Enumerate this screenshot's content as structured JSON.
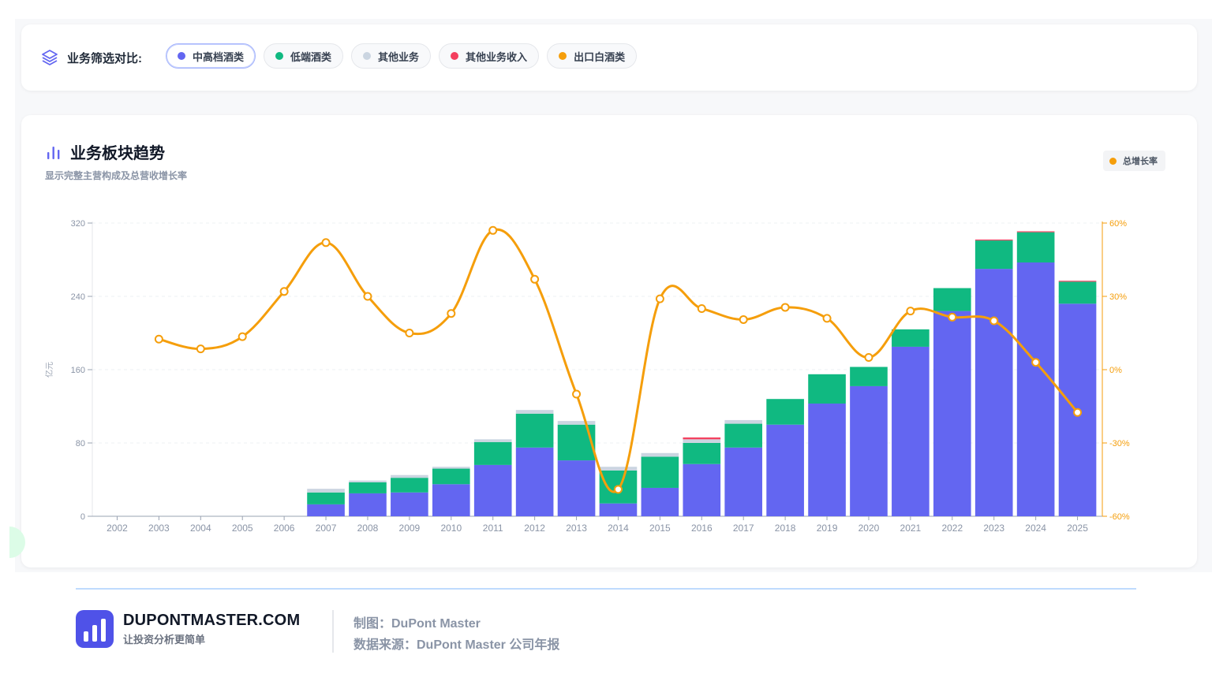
{
  "filter": {
    "label": "业务筛选对比:",
    "chips": [
      {
        "label": "中高档酒类",
        "color": "#6366f1",
        "active": true
      },
      {
        "label": "低端酒类",
        "color": "#10b981",
        "active": false
      },
      {
        "label": "其他业务",
        "color": "#cbd5e1",
        "active": false
      },
      {
        "label": "其他业务收入",
        "color": "#f43f5e",
        "active": false
      },
      {
        "label": "出口白酒类",
        "color": "#f59e0b",
        "active": false
      }
    ]
  },
  "chart_header": {
    "title": "业务板块趋势",
    "subtitle": "显示完整主营构成及总营收增长率",
    "legend_label": "总增长率"
  },
  "chart_data": {
    "type": "bar",
    "stacked": true,
    "categories": [
      "2002",
      "2003",
      "2004",
      "2005",
      "2006",
      "2007",
      "2008",
      "2009",
      "2010",
      "2011",
      "2012",
      "2013",
      "2014",
      "2015",
      "2016",
      "2017",
      "2018",
      "2019",
      "2020",
      "2021",
      "2022",
      "2023",
      "2024",
      "2025"
    ],
    "ylabel": "亿元",
    "ylim": [
      0,
      320
    ],
    "yticks": [
      0,
      80,
      160,
      240,
      320
    ],
    "y2lim": [
      -60,
      60
    ],
    "y2ticks": [
      -60,
      -30,
      0,
      30,
      60
    ],
    "y2tick_labels": [
      "-60%",
      "-30%",
      "0%",
      "30%",
      "60%"
    ],
    "series": [
      {
        "name": "中高档酒类",
        "color": "#6366f1",
        "values": [
          0,
          0,
          0,
          0,
          0,
          13,
          25,
          26,
          35,
          56,
          75,
          61,
          14,
          31,
          57,
          75,
          100,
          123,
          142,
          185,
          224,
          270,
          277,
          232
        ]
      },
      {
        "name": "低端酒类",
        "color": "#10b981",
        "values": [
          0,
          0,
          0,
          0,
          0,
          13,
          12,
          16,
          17,
          25,
          37,
          39,
          36,
          34,
          23,
          26,
          28,
          32,
          21,
          19,
          25,
          31,
          33,
          24
        ]
      },
      {
        "name": "其他业务",
        "color": "#cbd5e1",
        "values": [
          0,
          0,
          0,
          0,
          0,
          4,
          2,
          3,
          2,
          3,
          4,
          4,
          4,
          4,
          4,
          4,
          0,
          0,
          0,
          0,
          0,
          0,
          0,
          0
        ]
      },
      {
        "name": "其他业务收入",
        "color": "#f43f5e",
        "values": [
          0,
          0,
          0,
          0,
          0,
          0,
          0,
          0,
          0,
          0,
          0,
          0,
          0,
          0,
          2,
          0,
          0,
          0,
          0,
          0,
          0,
          1,
          1,
          1
        ]
      }
    ],
    "line": {
      "name": "总增长率",
      "color": "#f59e0b",
      "axis": "right",
      "points": [
        {
          "x": "2003",
          "y": 12.5
        },
        {
          "x": "2004",
          "y": 8.5
        },
        {
          "x": "2005",
          "y": 13.5
        },
        {
          "x": "2006",
          "y": 32
        },
        {
          "x": "2007",
          "y": 52
        },
        {
          "x": "2008",
          "y": 30
        },
        {
          "x": "2009",
          "y": 15
        },
        {
          "x": "2010",
          "y": 23
        },
        {
          "x": "2011",
          "y": 57
        },
        {
          "x": "2012",
          "y": 37
        },
        {
          "x": "2013",
          "y": -10
        },
        {
          "x": "2014",
          "y": -49
        },
        {
          "x": "2015",
          "y": 29
        },
        {
          "x": "2016",
          "y": 25
        },
        {
          "x": "2017",
          "y": 20.5
        },
        {
          "x": "2018",
          "y": 25.5
        },
        {
          "x": "2019",
          "y": 21
        },
        {
          "x": "2020",
          "y": 5
        },
        {
          "x": "2021",
          "y": 24
        },
        {
          "x": "2022",
          "y": 21.5
        },
        {
          "x": "2023",
          "y": 20
        },
        {
          "x": "2024",
          "y": 3
        },
        {
          "x": "2025",
          "y": -17.5
        }
      ]
    },
    "grid": true
  },
  "footer": {
    "brand_name": "DUPONTMASTER.COM",
    "slogan": "让投资分析更简单",
    "made_by": "制图：DuPont Master",
    "source": "数据来源：DuPont Master 公司年报"
  }
}
